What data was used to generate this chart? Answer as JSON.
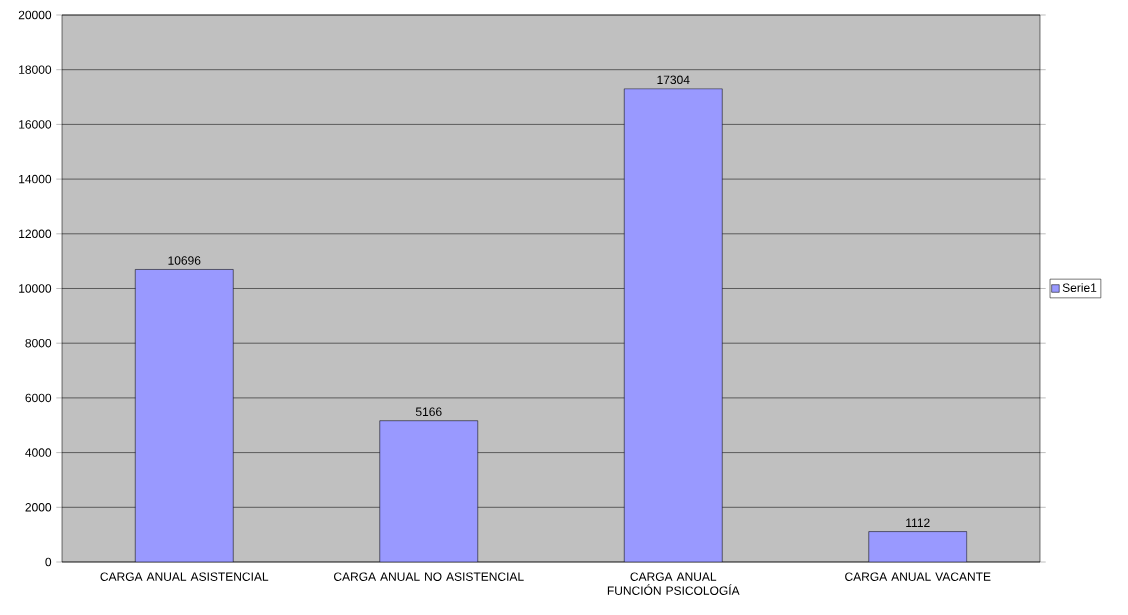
{
  "chart_data": {
    "type": "bar",
    "categories": [
      "CARGA ANUAL ASISTENCIAL",
      "CARGA ANUAL NO ASISTENCIAL",
      "CARGA ANUAL FUNCIÓN PSICOLOGÍA",
      "CARGA ANUAL VACANTE"
    ],
    "series": [
      {
        "name": "Serie1",
        "color": "#9999ff",
        "values": [
          10696,
          5166,
          17304,
          1112
        ]
      }
    ],
    "ylim": [
      0,
      20000
    ],
    "yticks": [
      0,
      2000,
      4000,
      6000,
      8000,
      10000,
      12000,
      14000,
      16000,
      18000,
      20000
    ],
    "grid": "y",
    "legend": "right",
    "data_labels": true
  }
}
